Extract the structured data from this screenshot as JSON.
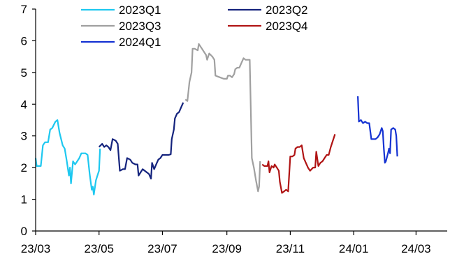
{
  "chart_data": {
    "type": "line",
    "title": "",
    "xlabel": "",
    "ylabel": "",
    "ylim": [
      0,
      7
    ],
    "yticks": [
      "0",
      "1",
      "2",
      "3",
      "4",
      "5",
      "6",
      "7"
    ],
    "xlim": [
      "2023-03-01",
      "2024-03-31"
    ],
    "xticks": [
      {
        "date": "2023-03-01",
        "label": "23/03"
      },
      {
        "date": "2023-05-01",
        "label": "23/05"
      },
      {
        "date": "2023-07-01",
        "label": "23/07"
      },
      {
        "date": "2023-09-01",
        "label": "23/09"
      },
      {
        "date": "2023-11-01",
        "label": "23/11"
      },
      {
        "date": "2024-01-01",
        "label": "24/01"
      },
      {
        "date": "2024-03-01",
        "label": "24/03"
      }
    ],
    "grid": false,
    "legend_position": "top",
    "series": [
      {
        "name": "2023Q1",
        "color": "#1EC8F0",
        "points": [
          [
            "2023-03-01",
            2.3
          ],
          [
            "2023-03-02",
            2.05
          ],
          [
            "2023-03-06",
            2.05
          ],
          [
            "2023-03-08",
            2.7
          ],
          [
            "2023-03-10",
            2.8
          ],
          [
            "2023-03-13",
            2.8
          ],
          [
            "2023-03-15",
            3.2
          ],
          [
            "2023-03-17",
            3.25
          ],
          [
            "2023-03-20",
            3.45
          ],
          [
            "2023-03-22",
            3.5
          ],
          [
            "2023-03-24",
            3.1
          ],
          [
            "2023-03-27",
            2.7
          ],
          [
            "2023-03-29",
            2.6
          ],
          [
            "2023-03-31",
            2.2
          ],
          [
            "2023-04-02",
            1.75
          ],
          [
            "2023-04-03",
            2.0
          ],
          [
            "2023-04-04",
            1.5
          ],
          [
            "2023-04-06",
            2.2
          ],
          [
            "2023-04-08",
            2.1
          ],
          [
            "2023-04-10",
            2.2
          ],
          [
            "2023-04-12",
            2.3
          ],
          [
            "2023-04-14",
            2.45
          ],
          [
            "2023-04-18",
            2.45
          ],
          [
            "2023-04-20",
            2.4
          ],
          [
            "2023-04-22",
            1.8
          ],
          [
            "2023-04-24",
            1.3
          ],
          [
            "2023-04-25",
            1.4
          ],
          [
            "2023-04-26",
            1.15
          ],
          [
            "2023-04-28",
            1.6
          ],
          [
            "2023-04-30",
            1.8
          ],
          [
            "2023-05-01",
            1.9
          ],
          [
            "2023-05-02",
            2.6
          ]
        ]
      },
      {
        "name": "2023Q2",
        "color": "#14237D",
        "points": [
          [
            "2023-05-01",
            2.65
          ],
          [
            "2023-05-04",
            2.75
          ],
          [
            "2023-05-06",
            2.65
          ],
          [
            "2023-05-08",
            2.7
          ],
          [
            "2023-05-10",
            2.65
          ],
          [
            "2023-05-12",
            2.55
          ],
          [
            "2023-05-14",
            2.9
          ],
          [
            "2023-05-17",
            2.85
          ],
          [
            "2023-05-19",
            2.75
          ],
          [
            "2023-05-21",
            1.9
          ],
          [
            "2023-05-24",
            1.95
          ],
          [
            "2023-05-26",
            1.95
          ],
          [
            "2023-05-28",
            2.3
          ],
          [
            "2023-05-31",
            2.25
          ],
          [
            "2023-06-02",
            2.15
          ],
          [
            "2023-06-05",
            2.1
          ],
          [
            "2023-06-07",
            2.1
          ],
          [
            "2023-06-08",
            1.75
          ],
          [
            "2023-06-10",
            1.85
          ],
          [
            "2023-06-12",
            1.95
          ],
          [
            "2023-06-14",
            1.9
          ],
          [
            "2023-06-16",
            1.85
          ],
          [
            "2023-06-18",
            1.8
          ],
          [
            "2023-06-20",
            1.65
          ],
          [
            "2023-06-21",
            2.15
          ],
          [
            "2023-06-23",
            1.95
          ],
          [
            "2023-06-25",
            2.1
          ],
          [
            "2023-06-27",
            2.25
          ],
          [
            "2023-06-29",
            2.3
          ],
          [
            "2023-07-01",
            2.4
          ],
          [
            "2023-07-03",
            2.4
          ],
          [
            "2023-07-05",
            2.4
          ],
          [
            "2023-07-07",
            2.4
          ],
          [
            "2023-07-09",
            2.42
          ],
          [
            "2023-07-10",
            2.9
          ],
          [
            "2023-07-12",
            3.2
          ],
          [
            "2023-07-13",
            3.55
          ],
          [
            "2023-07-15",
            3.7
          ],
          [
            "2023-07-17",
            3.75
          ],
          [
            "2023-07-19",
            3.9
          ],
          [
            "2023-07-21",
            4.05
          ]
        ]
      },
      {
        "name": "2023Q3",
        "color": "#A0A0A0",
        "points": [
          [
            "2023-07-23",
            4.15
          ],
          [
            "2023-07-25",
            4.1
          ],
          [
            "2023-07-27",
            4.7
          ],
          [
            "2023-07-29",
            5.0
          ],
          [
            "2023-07-30",
            5.75
          ],
          [
            "2023-08-01",
            5.75
          ],
          [
            "2023-08-04",
            5.7
          ],
          [
            "2023-08-05",
            5.9
          ],
          [
            "2023-08-08",
            5.75
          ],
          [
            "2023-08-12",
            5.55
          ],
          [
            "2023-08-13",
            5.4
          ],
          [
            "2023-08-15",
            5.6
          ],
          [
            "2023-08-18",
            5.5
          ],
          [
            "2023-08-20",
            5.4
          ],
          [
            "2023-08-21",
            4.9
          ],
          [
            "2023-08-25",
            4.85
          ],
          [
            "2023-08-29",
            4.8
          ],
          [
            "2023-09-01",
            4.8
          ],
          [
            "2023-09-02",
            4.9
          ],
          [
            "2023-09-04",
            4.9
          ],
          [
            "2023-09-06",
            4.85
          ],
          [
            "2023-09-08",
            4.95
          ],
          [
            "2023-09-09",
            5.1
          ],
          [
            "2023-09-11",
            5.15
          ],
          [
            "2023-09-13",
            5.15
          ],
          [
            "2023-09-15",
            5.3
          ],
          [
            "2023-09-17",
            5.45
          ],
          [
            "2023-09-19",
            5.4
          ],
          [
            "2023-09-21",
            5.4
          ],
          [
            "2023-09-23",
            5.4
          ],
          [
            "2023-09-25",
            2.3
          ],
          [
            "2023-09-27",
            2.0
          ],
          [
            "2023-09-29",
            1.6
          ],
          [
            "2023-10-01",
            1.25
          ],
          [
            "2023-10-02",
            1.4
          ],
          [
            "2023-10-03",
            2.2
          ]
        ]
      },
      {
        "name": "2023Q4",
        "color": "#B01414",
        "points": [
          [
            "2023-10-05",
            2.1
          ],
          [
            "2023-10-07",
            2.05
          ],
          [
            "2023-10-10",
            2.05
          ],
          [
            "2023-10-11",
            2.2
          ],
          [
            "2023-10-12",
            1.85
          ],
          [
            "2023-10-14",
            2.05
          ],
          [
            "2023-10-16",
            2.0
          ],
          [
            "2023-10-17",
            2.1
          ],
          [
            "2023-10-19",
            2.0
          ],
          [
            "2023-10-21",
            1.9
          ],
          [
            "2023-10-22",
            1.55
          ],
          [
            "2023-10-24",
            1.2
          ],
          [
            "2023-10-26",
            1.25
          ],
          [
            "2023-10-28",
            1.3
          ],
          [
            "2023-10-30",
            1.25
          ],
          [
            "2023-11-01",
            2.35
          ],
          [
            "2023-11-03",
            2.35
          ],
          [
            "2023-11-05",
            2.4
          ],
          [
            "2023-11-06",
            2.6
          ],
          [
            "2023-11-08",
            2.65
          ],
          [
            "2023-11-10",
            2.65
          ],
          [
            "2023-11-12",
            2.7
          ],
          [
            "2023-11-14",
            2.3
          ],
          [
            "2023-11-16",
            2.15
          ],
          [
            "2023-11-18",
            2.0
          ],
          [
            "2023-11-20",
            1.9
          ],
          [
            "2023-11-23",
            2.0
          ],
          [
            "2023-11-25",
            2.0
          ],
          [
            "2023-11-26",
            2.5
          ],
          [
            "2023-11-28",
            2.05
          ],
          [
            "2023-11-30",
            2.15
          ],
          [
            "2023-12-02",
            2.2
          ],
          [
            "2023-12-04",
            2.3
          ],
          [
            "2023-12-06",
            2.4
          ],
          [
            "2023-12-08",
            2.4
          ],
          [
            "2023-12-10",
            2.65
          ],
          [
            "2023-12-12",
            2.85
          ],
          [
            "2023-12-14",
            3.05
          ]
        ]
      },
      {
        "name": "2024Q1",
        "color": "#1432D2",
        "points": [
          [
            "2024-01-05",
            4.25
          ],
          [
            "2024-01-06",
            3.45
          ],
          [
            "2024-01-08",
            3.5
          ],
          [
            "2024-01-10",
            3.4
          ],
          [
            "2024-01-12",
            3.45
          ],
          [
            "2024-01-14",
            3.4
          ],
          [
            "2024-01-16",
            3.4
          ],
          [
            "2024-01-18",
            2.9
          ],
          [
            "2024-01-20",
            2.9
          ],
          [
            "2024-01-22",
            2.9
          ],
          [
            "2024-01-24",
            2.95
          ],
          [
            "2024-01-26",
            3.05
          ],
          [
            "2024-01-28",
            3.25
          ],
          [
            "2024-01-29",
            3.15
          ],
          [
            "2024-01-30",
            2.6
          ],
          [
            "2024-01-31",
            2.15
          ],
          [
            "2024-02-01",
            2.2
          ],
          [
            "2024-02-03",
            2.45
          ],
          [
            "2024-02-04",
            2.6
          ],
          [
            "2024-02-05",
            2.45
          ],
          [
            "2024-02-06",
            3.2
          ],
          [
            "2024-02-08",
            3.25
          ],
          [
            "2024-02-10",
            3.2
          ],
          [
            "2024-02-11",
            3.0
          ],
          [
            "2024-02-12",
            2.35
          ]
        ]
      }
    ]
  }
}
